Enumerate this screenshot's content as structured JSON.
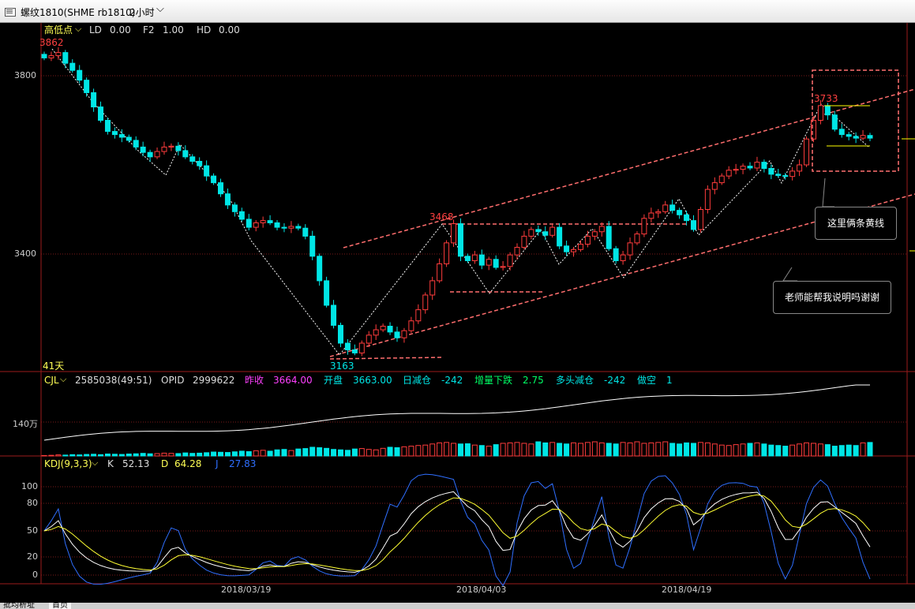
{
  "titlebar": {
    "symbol": "螺纹1810(SHME rb1810)",
    "period": "2小时",
    "period_icon": "chevron-down-icon"
  },
  "price_panel": {
    "indicator": "高低点",
    "ld_label": "LD",
    "ld_value": "0.00",
    "f2_label": "F2",
    "f2_value": "1.00",
    "hd_label": "HD",
    "hd_value": "0.00",
    "high_mark": "3862",
    "low_mark": "3163",
    "mid_high_mark": "3468",
    "recent_high_mark": "3733",
    "days_label": "41天",
    "y_ticks": [
      "3800",
      "3400"
    ]
  },
  "volume_panel": {
    "name": "CJL",
    "volume": "2585038(49:51)",
    "opid_label": "OPID",
    "opid_value": "2999622",
    "prev_close_label": "昨收",
    "prev_close_value": "3664.00",
    "open_label": "开盘",
    "open_value": "3663.00",
    "daily_oi_label": "日减仓",
    "daily_oi_value": "-242",
    "inc_down_label": "增量下跌",
    "inc_down_value": "2.75",
    "long_label": "多头减仓",
    "long_value": "-242",
    "short_label": "做空",
    "short_value": "1",
    "y_tick": "140万"
  },
  "kdj_panel": {
    "name": "KDJ(9,3,3)",
    "k_label": "K",
    "k_value": "52.13",
    "d_label": "D",
    "d_value": "64.28",
    "j_label": "J",
    "j_value": "27.83",
    "y_ticks": [
      "100",
      "80",
      "50",
      "20",
      "0"
    ]
  },
  "x_axis": [
    "2018/03/19",
    "2018/04/03",
    "2018/04/19"
  ],
  "annotations": {
    "callout_1": "这里俩条黄线",
    "callout_2": "老师能帮我说明吗谢谢"
  },
  "bottom_tabs": [
    "批均析址",
    "首页"
  ],
  "colors": {
    "up": "#ff3c3c",
    "down": "#00e6e6",
    "channel": "#ff7070",
    "k": "#ffffff",
    "d": "#ffff33",
    "j": "#2f6fff",
    "yellow": "#ffff00"
  },
  "chart_data": {
    "type": "candlestick",
    "price_range": [
      3163,
      3862
    ],
    "closes": [
      3840,
      3845,
      3852,
      3828,
      3812,
      3790,
      3762,
      3730,
      3700,
      3675,
      3668,
      3662,
      3655,
      3640,
      3628,
      3618,
      3630,
      3640,
      3642,
      3632,
      3618,
      3608,
      3598,
      3575,
      3560,
      3535,
      3510,
      3495,
      3478,
      3460,
      3470,
      3475,
      3470,
      3460,
      3458,
      3462,
      3458,
      3440,
      3395,
      3340,
      3285,
      3240,
      3200,
      3185,
      3178,
      3200,
      3218,
      3230,
      3238,
      3225,
      3212,
      3228,
      3250,
      3275,
      3308,
      3340,
      3378,
      3425,
      3468,
      3395,
      3385,
      3398,
      3375,
      3388,
      3370,
      3372,
      3398,
      3415,
      3440,
      3455,
      3450,
      3442,
      3460,
      3418,
      3405,
      3410,
      3422,
      3440,
      3450,
      3462,
      3412,
      3385,
      3398,
      3425,
      3445,
      3480,
      3492,
      3495,
      3510,
      3498,
      3488,
      3475,
      3455,
      3500,
      3545,
      3560,
      3575,
      3588,
      3590,
      3597,
      3593,
      3606,
      3592,
      3579,
      3576,
      3574,
      3586,
      3600,
      3658,
      3700,
      3733,
      3712,
      3680,
      3668,
      3664,
      3660,
      3666,
      3660
    ],
    "volume_10k": [
      2,
      3,
      5,
      4,
      6,
      5,
      7,
      8,
      6,
      9,
      8,
      7,
      9,
      10,
      12,
      10,
      11,
      13,
      12,
      11,
      14,
      12,
      13,
      15,
      18,
      17,
      16,
      19,
      22,
      20,
      24,
      26,
      22,
      28,
      30,
      25,
      32,
      34,
      40,
      38,
      35,
      30,
      28,
      26,
      32,
      34,
      30,
      28,
      35,
      40,
      38,
      42,
      45,
      48,
      50,
      55,
      60,
      62,
      58,
      55,
      56,
      50,
      48,
      45,
      52,
      58,
      60,
      62,
      58,
      55,
      65,
      60,
      62,
      58,
      55,
      60,
      58,
      62,
      65,
      60,
      58,
      55,
      62,
      60,
      65,
      58,
      60,
      62,
      65,
      58,
      55,
      60,
      58,
      62,
      60,
      55,
      50,
      48,
      52,
      55,
      58,
      60,
      55,
      50,
      48,
      45,
      50,
      55,
      60,
      58,
      55,
      52,
      45,
      48,
      50,
      48,
      60,
      62
    ],
    "kdj": {
      "last": {
        "K": 52.13,
        "D": 64.28,
        "J": 27.83
      },
      "range": [
        0,
        100
      ]
    }
  }
}
